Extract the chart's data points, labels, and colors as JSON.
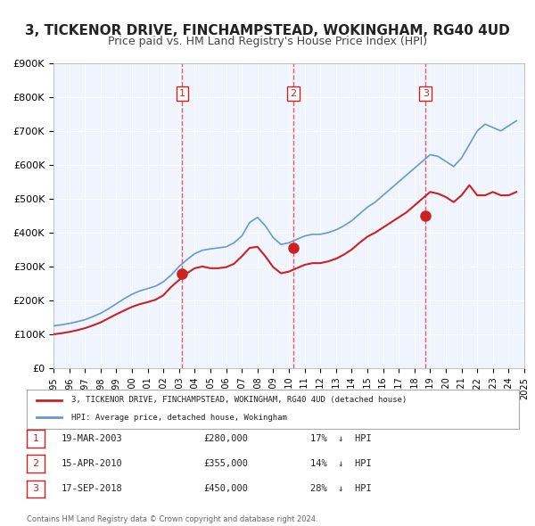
{
  "title": "3, TICKENOR DRIVE, FINCHAMPSTEAD, WOKINGHAM, RG40 4UD",
  "subtitle": "Price paid vs. HM Land Registry's House Price Index (HPI)",
  "title_fontsize": 11,
  "subtitle_fontsize": 9,
  "background_color": "#ffffff",
  "plot_background": "#f0f4ff",
  "grid_color": "#ffffff",
  "ylim": [
    0,
    900000
  ],
  "yticks": [
    0,
    100000,
    200000,
    300000,
    400000,
    500000,
    600000,
    700000,
    800000,
    900000
  ],
  "ytick_labels": [
    "£0",
    "£100K",
    "£200K",
    "£300K",
    "£400K",
    "£500K",
    "£600K",
    "£700K",
    "£800K",
    "£900K"
  ],
  "xtick_years": [
    1995,
    1996,
    1997,
    1998,
    1999,
    2000,
    2001,
    2002,
    2003,
    2004,
    2005,
    2006,
    2007,
    2008,
    2009,
    2010,
    2011,
    2012,
    2013,
    2014,
    2015,
    2016,
    2017,
    2018,
    2019,
    2020,
    2021,
    2022,
    2023,
    2024,
    2025
  ],
  "hpi_color": "#6699cc",
  "price_color": "#cc2222",
  "sale_marker_color": "#cc2222",
  "sale_line_color": "#cc3333",
  "dashed_line_color": "#dd4444",
  "legend_box_color": "#f8f8f8",
  "sales": [
    {
      "num": 1,
      "date_x": 2003.21,
      "price": 280000,
      "label": "19-MAR-2003",
      "hpi_pct": "17%",
      "direction": "↓"
    },
    {
      "num": 2,
      "date_x": 2010.29,
      "price": 355000,
      "label": "15-APR-2010",
      "hpi_pct": "14%",
      "direction": "↓"
    },
    {
      "num": 3,
      "date_x": 2018.71,
      "price": 450000,
      "label": "17-SEP-2018",
      "hpi_pct": "28%",
      "direction": "↓"
    }
  ],
  "hpi_data": {
    "x": [
      1995.0,
      1995.5,
      1996.0,
      1996.5,
      1997.0,
      1997.5,
      1998.0,
      1998.5,
      1999.0,
      1999.5,
      2000.0,
      2000.5,
      2001.0,
      2001.5,
      2002.0,
      2002.5,
      2003.0,
      2003.5,
      2004.0,
      2004.5,
      2005.0,
      2005.5,
      2006.0,
      2006.5,
      2007.0,
      2007.5,
      2008.0,
      2008.5,
      2009.0,
      2009.5,
      2010.0,
      2010.5,
      2011.0,
      2011.5,
      2012.0,
      2012.5,
      2013.0,
      2013.5,
      2014.0,
      2014.5,
      2015.0,
      2015.5,
      2016.0,
      2016.5,
      2017.0,
      2017.5,
      2018.0,
      2018.5,
      2019.0,
      2019.5,
      2020.0,
      2020.5,
      2021.0,
      2021.5,
      2022.0,
      2022.5,
      2023.0,
      2023.5,
      2024.0,
      2024.5
    ],
    "y": [
      125000,
      128000,
      132000,
      137000,
      143000,
      152000,
      162000,
      175000,
      190000,
      205000,
      218000,
      228000,
      235000,
      242000,
      255000,
      275000,
      300000,
      320000,
      338000,
      348000,
      352000,
      355000,
      358000,
      370000,
      390000,
      430000,
      445000,
      420000,
      385000,
      365000,
      370000,
      380000,
      390000,
      395000,
      395000,
      400000,
      408000,
      420000,
      435000,
      455000,
      475000,
      490000,
      510000,
      530000,
      550000,
      570000,
      590000,
      610000,
      630000,
      625000,
      610000,
      595000,
      620000,
      660000,
      700000,
      720000,
      710000,
      700000,
      715000,
      730000
    ]
  },
  "price_data": {
    "x": [
      1995.0,
      1995.5,
      1996.0,
      1996.5,
      1997.0,
      1997.5,
      1998.0,
      1998.5,
      1999.0,
      1999.5,
      2000.0,
      2000.5,
      2001.0,
      2001.5,
      2002.0,
      2002.5,
      2003.0,
      2003.5,
      2004.0,
      2004.5,
      2005.0,
      2005.5,
      2006.0,
      2006.5,
      2007.0,
      2007.5,
      2008.0,
      2008.5,
      2009.0,
      2009.5,
      2010.0,
      2010.5,
      2011.0,
      2011.5,
      2012.0,
      2012.5,
      2013.0,
      2013.5,
      2014.0,
      2014.5,
      2015.0,
      2015.5,
      2016.0,
      2016.5,
      2017.0,
      2017.5,
      2018.0,
      2018.5,
      2019.0,
      2019.5,
      2020.0,
      2020.5,
      2021.0,
      2021.5,
      2022.0,
      2022.5,
      2023.0,
      2023.5,
      2024.0,
      2024.5
    ],
    "y": [
      100000,
      103000,
      107000,
      112000,
      118000,
      126000,
      135000,
      147000,
      159000,
      170000,
      181000,
      189000,
      195000,
      202000,
      215000,
      240000,
      260000,
      280000,
      295000,
      300000,
      295000,
      295000,
      298000,
      308000,
      330000,
      355000,
      358000,
      330000,
      298000,
      280000,
      285000,
      295000,
      305000,
      310000,
      310000,
      315000,
      323000,
      335000,
      350000,
      370000,
      388000,
      400000,
      415000,
      430000,
      445000,
      460000,
      480000,
      500000,
      520000,
      515000,
      505000,
      490000,
      510000,
      540000,
      510000,
      510000,
      520000,
      510000,
      510000,
      520000
    ]
  }
}
